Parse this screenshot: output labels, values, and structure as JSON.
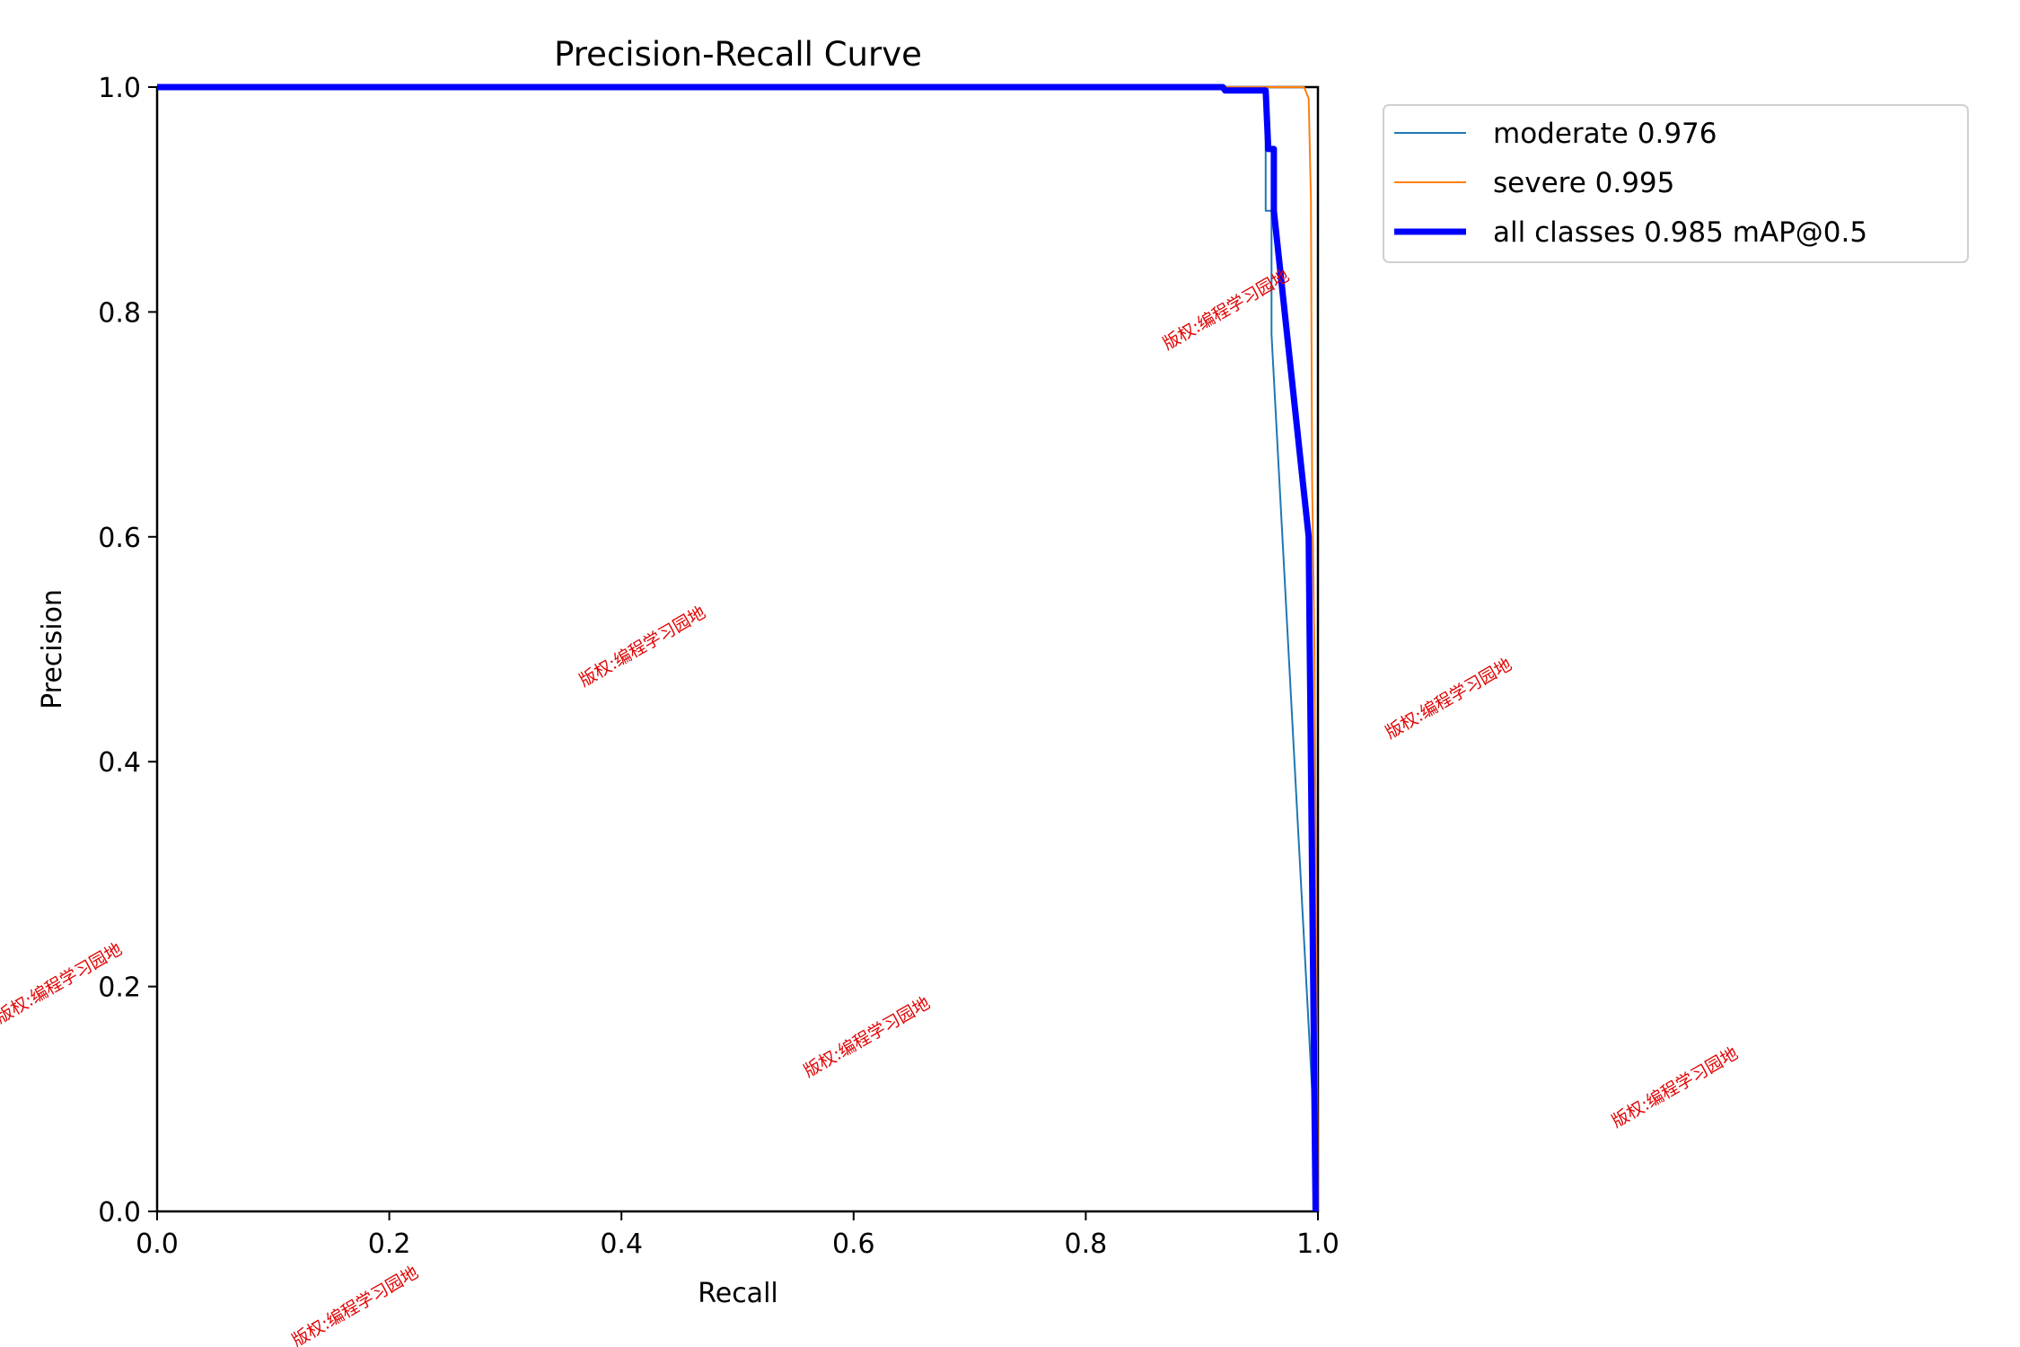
{
  "chart_data": {
    "type": "line",
    "title": "Precision-Recall Curve",
    "xlabel": "Recall",
    "ylabel": "Precision",
    "xlim": [
      0,
      1
    ],
    "ylim": [
      0,
      1
    ],
    "xticks": [
      "0.0",
      "0.2",
      "0.4",
      "0.6",
      "0.8",
      "1.0"
    ],
    "yticks": [
      "0.0",
      "0.2",
      "0.4",
      "0.6",
      "0.8",
      "1.0"
    ],
    "grid": false,
    "legend_position": "outside-top-right",
    "series": [
      {
        "name": "moderate 0.976",
        "color": "#1f77b4",
        "width": 2,
        "x": [
          0,
          0.955,
          0.955,
          0.96,
          0.96,
          0.998,
          0.998
        ],
        "y": [
          1,
          1,
          0.89,
          0.89,
          0.78,
          0.05,
          0
        ]
      },
      {
        "name": "severe 0.995",
        "color": "#ff7f0e",
        "width": 2,
        "x": [
          0,
          0.988,
          0.992,
          0.994,
          0.995,
          0.997,
          1.0
        ],
        "y": [
          1,
          1,
          0.99,
          0.9,
          0.65,
          0.5,
          0
        ]
      },
      {
        "name": "all classes 0.985 mAP@0.5",
        "color": "#0000ff",
        "width": 7,
        "x": [
          0,
          0.918,
          0.92,
          0.955,
          0.957,
          0.957,
          0.962,
          0.962,
          0.992,
          0.993,
          0.998
        ],
        "y": [
          1,
          1,
          0.997,
          0.997,
          0.95,
          0.945,
          0.945,
          0.89,
          0.6,
          0.5,
          0
        ]
      }
    ]
  },
  "watermark": {
    "text": "版权:编程学习园地"
  }
}
